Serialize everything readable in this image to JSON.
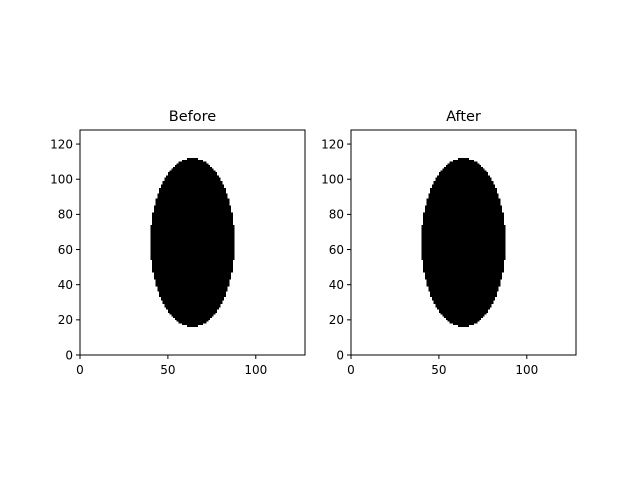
{
  "chart_data": [
    {
      "type": "heatmap",
      "title": "Before",
      "colormap": [
        "#ffffff",
        "#000000"
      ],
      "xlim": [
        0,
        128
      ],
      "ylim": [
        0,
        128
      ],
      "xticks": [
        0,
        50,
        100
      ],
      "yticks": [
        0,
        20,
        40,
        60,
        80,
        100,
        120
      ],
      "shape": {
        "kind": "filled-ellipse",
        "center_x": 64,
        "center_y": 64,
        "semi_axis_x": 24,
        "semi_axis_y": 48,
        "value": 1
      }
    },
    {
      "type": "heatmap",
      "title": "After",
      "colormap": [
        "#ffffff",
        "#000000"
      ],
      "xlim": [
        0,
        128
      ],
      "ylim": [
        0,
        128
      ],
      "xticks": [
        0,
        50,
        100
      ],
      "yticks": [
        0,
        20,
        40,
        60,
        80,
        100,
        120
      ],
      "shape": {
        "kind": "filled-ellipse",
        "center_x": 64,
        "center_y": 64,
        "semi_axis_x": 24,
        "semi_axis_y": 48,
        "value": 1
      }
    }
  ]
}
